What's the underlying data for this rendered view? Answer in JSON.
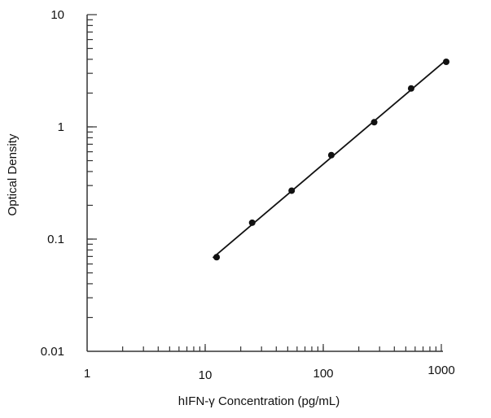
{
  "chart_data": {
    "type": "scatter",
    "title": "",
    "xlabel": "hIFN-γ Concentration (pg/mL)",
    "ylabel": "Optical Density",
    "x_scale": "log",
    "y_scale": "log",
    "xlim": [
      1,
      1000
    ],
    "ylim": [
      0.01,
      10
    ],
    "x_ticks": [
      {
        "value": 1,
        "label": "1"
      },
      {
        "value": 10,
        "label": "10"
      },
      {
        "value": 100,
        "label": "100"
      },
      {
        "value": 1000,
        "label": "1000"
      }
    ],
    "y_ticks": [
      {
        "value": 10,
        "label": "10"
      },
      {
        "value": 1,
        "label": "1"
      },
      {
        "value": 0.1,
        "label": "0.1"
      },
      {
        "value": 0.01,
        "label": "0.01"
      }
    ],
    "grid": false,
    "fit_line": "log-log linear",
    "points": {
      "x": [
        12.5,
        25,
        54,
        117,
        270,
        555,
        1100
      ],
      "y": [
        0.069,
        0.14,
        0.27,
        0.56,
        1.1,
        2.2,
        3.8
      ]
    },
    "colors": {
      "marks": "#111111",
      "axis": "#333333"
    }
  }
}
